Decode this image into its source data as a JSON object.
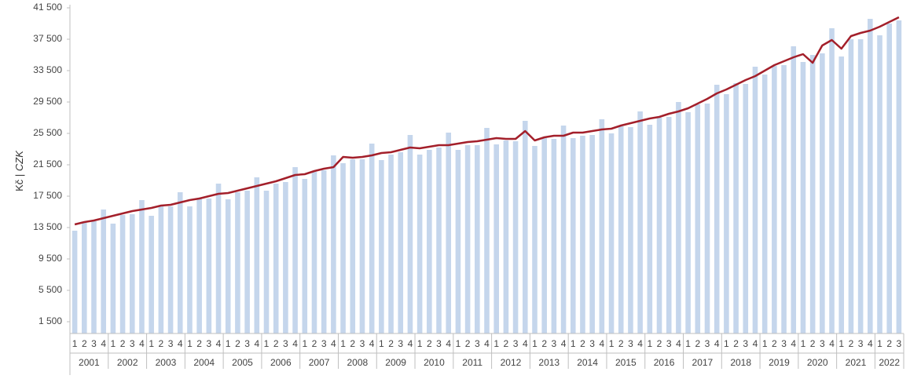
{
  "chart_data": {
    "type": "bar-line",
    "y_label": "Kč | ",
    "y_label_unit": "CZK",
    "categories": [
      "1",
      "2",
      "3",
      "4",
      "1",
      "2",
      "3",
      "4",
      "1",
      "2",
      "3",
      "4",
      "1",
      "2",
      "3",
      "4",
      "1",
      "2",
      "3",
      "4",
      "1",
      "2",
      "3",
      "4",
      "1",
      "2",
      "3",
      "4",
      "1",
      "2",
      "3",
      "4",
      "1",
      "2",
      "3",
      "4",
      "1",
      "2",
      "3",
      "4",
      "1",
      "2",
      "3",
      "4",
      "1",
      "2",
      "3",
      "4",
      "1",
      "2",
      "3",
      "4",
      "1",
      "2",
      "3",
      "4",
      "1",
      "2",
      "3",
      "4",
      "1",
      "2",
      "3",
      "4",
      "1",
      "2",
      "3",
      "4",
      "1",
      "2",
      "3",
      "4",
      "1",
      "2",
      "3",
      "4",
      "1",
      "2",
      "3",
      "4",
      "1",
      "2",
      "3",
      "4",
      "1",
      "2",
      "3"
    ],
    "groups": [
      "2001",
      "2002",
      "2003",
      "2004",
      "2005",
      "2006",
      "2007",
      "2008",
      "2009",
      "2010",
      "2011",
      "2012",
      "2013",
      "2014",
      "2015",
      "2016",
      "2017",
      "2018",
      "2019",
      "2020",
      "2021",
      "2022"
    ],
    "series": [
      {
        "type": "bar",
        "color": "#c5d6ec",
        "values": [
          13100,
          14100,
          14300,
          15800,
          14000,
          15100,
          15200,
          17000,
          15000,
          16200,
          16200,
          18000,
          16200,
          17200,
          17200,
          19100,
          17100,
          18000,
          18200,
          19900,
          18200,
          19100,
          19300,
          21200,
          19700,
          20600,
          20800,
          22700,
          21700,
          22200,
          22200,
          24200,
          22100,
          22800,
          23100,
          25300,
          22800,
          23400,
          23700,
          25600,
          23400,
          24000,
          24000,
          26200,
          24100,
          24600,
          24500,
          27100,
          23900,
          24900,
          24800,
          26500,
          24900,
          25200,
          25300,
          27300,
          25500,
          26400,
          26300,
          28300,
          26600,
          27500,
          27600,
          29500,
          28200,
          29200,
          29300,
          31700,
          30500,
          31900,
          31800,
          34000,
          33000,
          34100,
          34200,
          36600,
          34600,
          35500,
          35700,
          38900,
          35300,
          37500,
          37500,
          40100,
          38000,
          39500,
          39900
        ]
      },
      {
        "type": "line",
        "color": "#a31f2a",
        "values": [
          13900,
          14200,
          14400,
          14700,
          15000,
          15300,
          15600,
          15800,
          16000,
          16300,
          16400,
          16700,
          17000,
          17200,
          17500,
          17800,
          17900,
          18200,
          18500,
          18800,
          19100,
          19400,
          19800,
          20200,
          20300,
          20700,
          21000,
          21200,
          22500,
          22400,
          22500,
          22700,
          23000,
          23100,
          23400,
          23700,
          23600,
          23800,
          24000,
          24000,
          24200,
          24400,
          24500,
          24700,
          24900,
          24800,
          24800,
          25800,
          24600,
          25000,
          25200,
          25200,
          25600,
          25600,
          25800,
          26000,
          26100,
          26500,
          26800,
          27100,
          27400,
          27600,
          28000,
          28300,
          28700,
          29300,
          29900,
          30600,
          31100,
          31700,
          32300,
          32800,
          33500,
          34200,
          34700,
          35200,
          35600,
          34500,
          36700,
          37400,
          36300,
          37900,
          38300,
          38600,
          39100,
          39700,
          40300
        ]
      }
    ],
    "ylim": [
      0,
      41500
    ],
    "yticks": [
      {
        "value": 1500,
        "label": "1 500"
      },
      {
        "value": 5500,
        "label": "5 500"
      },
      {
        "value": 9500,
        "label": "9 500"
      },
      {
        "value": 13500,
        "label": "13 500"
      },
      {
        "value": 17500,
        "label": "17 500"
      },
      {
        "value": 21500,
        "label": "21 500"
      },
      {
        "value": 25500,
        "label": "25 500"
      },
      {
        "value": 29500,
        "label": "29 500"
      },
      {
        "value": 33500,
        "label": "33 500"
      },
      {
        "value": 37500,
        "label": "37 500"
      },
      {
        "value": 41500,
        "label": "41 500"
      }
    ]
  }
}
